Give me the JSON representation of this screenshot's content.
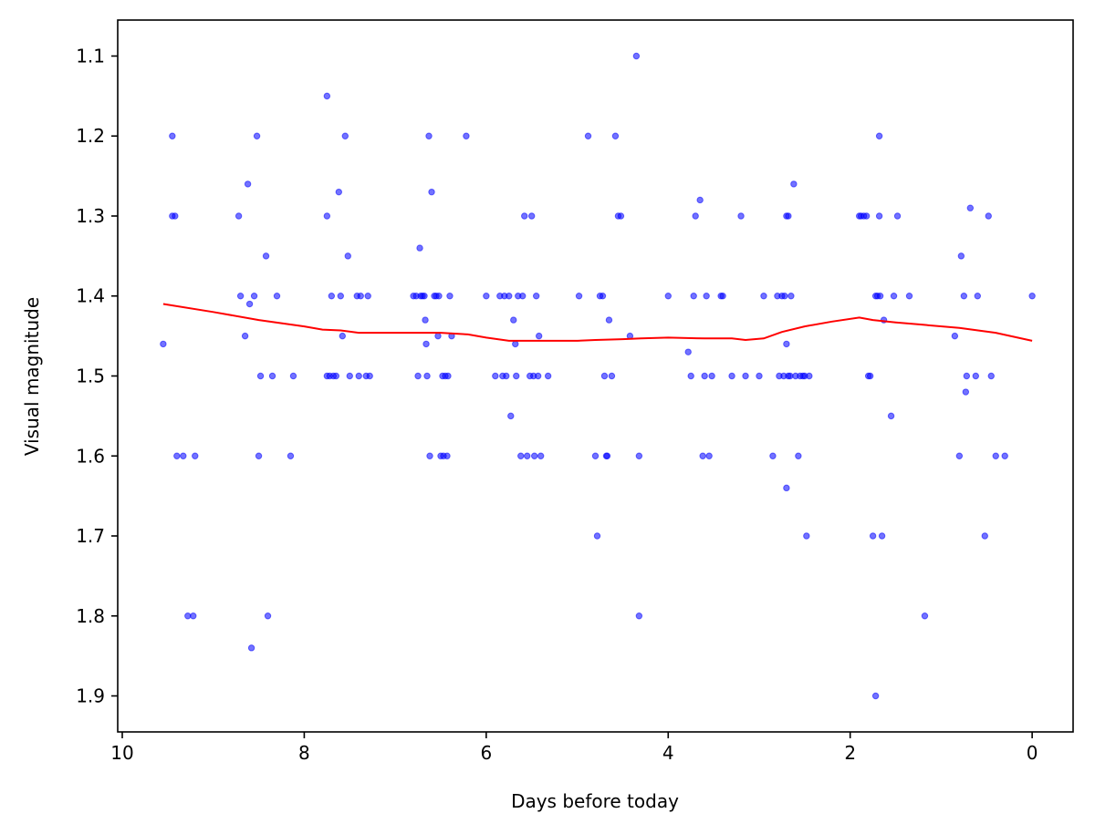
{
  "chart_data": {
    "type": "scatter",
    "title": "",
    "xlabel": "Days before today",
    "ylabel": "Visual magnitude",
    "x_inverted": true,
    "y_inverted": true,
    "xlim": [
      10.05,
      -0.45
    ],
    "ylim": [
      1.055,
      1.945
    ],
    "grid": false,
    "x_ticks": [
      10,
      8,
      6,
      4,
      2,
      0
    ],
    "x_tick_labels": [
      "10",
      "8",
      "6",
      "4",
      "2",
      "0"
    ],
    "y_ticks": [
      1.1,
      1.2,
      1.3,
      1.4,
      1.5,
      1.6,
      1.7,
      1.8,
      1.9
    ],
    "y_tick_labels": [
      "1.1",
      "1.2",
      "1.3",
      "1.4",
      "1.5",
      "1.6",
      "1.7",
      "1.8",
      "1.9"
    ],
    "series": [
      {
        "kind": "scatter",
        "color": "#0000ff",
        "opacity": 0.55,
        "points": [
          [
            9.55,
            1.46
          ],
          [
            9.45,
            1.2
          ],
          [
            9.45,
            1.3
          ],
          [
            9.42,
            1.3
          ],
          [
            9.4,
            1.6
          ],
          [
            9.33,
            1.6
          ],
          [
            9.28,
            1.8
          ],
          [
            9.22,
            1.8
          ],
          [
            9.2,
            1.6
          ],
          [
            8.72,
            1.3
          ],
          [
            8.7,
            1.4
          ],
          [
            8.65,
            1.45
          ],
          [
            8.62,
            1.26
          ],
          [
            8.6,
            1.41
          ],
          [
            8.58,
            1.84
          ],
          [
            8.55,
            1.4
          ],
          [
            8.52,
            1.2
          ],
          [
            8.5,
            1.6
          ],
          [
            8.48,
            1.5
          ],
          [
            8.42,
            1.35
          ],
          [
            8.4,
            1.8
          ],
          [
            8.35,
            1.5
          ],
          [
            8.3,
            1.4
          ],
          [
            8.15,
            1.6
          ],
          [
            8.12,
            1.5
          ],
          [
            7.75,
            1.15
          ],
          [
            7.75,
            1.3
          ],
          [
            7.75,
            1.5
          ],
          [
            7.72,
            1.5
          ],
          [
            7.7,
            1.4
          ],
          [
            7.68,
            1.5
          ],
          [
            7.65,
            1.5
          ],
          [
            7.62,
            1.27
          ],
          [
            7.6,
            1.4
          ],
          [
            7.58,
            1.45
          ],
          [
            7.55,
            1.2
          ],
          [
            7.52,
            1.35
          ],
          [
            7.5,
            1.5
          ],
          [
            7.42,
            1.4
          ],
          [
            7.4,
            1.5
          ],
          [
            7.38,
            1.4
          ],
          [
            7.32,
            1.5
          ],
          [
            7.3,
            1.4
          ],
          [
            7.28,
            1.5
          ],
          [
            6.8,
            1.4
          ],
          [
            6.77,
            1.4
          ],
          [
            6.75,
            1.5
          ],
          [
            6.73,
            1.34
          ],
          [
            6.72,
            1.4
          ],
          [
            6.7,
            1.4
          ],
          [
            6.68,
            1.4
          ],
          [
            6.67,
            1.43
          ],
          [
            6.66,
            1.46
          ],
          [
            6.65,
            1.5
          ],
          [
            6.63,
            1.2
          ],
          [
            6.62,
            1.6
          ],
          [
            6.6,
            1.27
          ],
          [
            6.57,
            1.4
          ],
          [
            6.55,
            1.4
          ],
          [
            6.53,
            1.45
          ],
          [
            6.52,
            1.4
          ],
          [
            6.5,
            1.6
          ],
          [
            6.48,
            1.5
          ],
          [
            6.47,
            1.6
          ],
          [
            6.45,
            1.5
          ],
          [
            6.43,
            1.6
          ],
          [
            6.42,
            1.5
          ],
          [
            6.4,
            1.4
          ],
          [
            6.38,
            1.45
          ],
          [
            6.22,
            1.2
          ],
          [
            6.0,
            1.4
          ],
          [
            5.9,
            1.5
          ],
          [
            5.85,
            1.4
          ],
          [
            5.82,
            1.5
          ],
          [
            5.8,
            1.4
          ],
          [
            5.78,
            1.5
          ],
          [
            5.75,
            1.4
          ],
          [
            5.73,
            1.55
          ],
          [
            5.7,
            1.43
          ],
          [
            5.68,
            1.46
          ],
          [
            5.67,
            1.5
          ],
          [
            5.65,
            1.4
          ],
          [
            5.62,
            1.6
          ],
          [
            5.6,
            1.4
          ],
          [
            5.58,
            1.3
          ],
          [
            5.55,
            1.6
          ],
          [
            5.52,
            1.5
          ],
          [
            5.5,
            1.3
          ],
          [
            5.48,
            1.5
          ],
          [
            5.47,
            1.6
          ],
          [
            5.45,
            1.4
          ],
          [
            5.43,
            1.5
          ],
          [
            5.42,
            1.45
          ],
          [
            5.4,
            1.6
          ],
          [
            5.32,
            1.5
          ],
          [
            4.98,
            1.4
          ],
          [
            4.88,
            1.2
          ],
          [
            4.8,
            1.6
          ],
          [
            4.78,
            1.7
          ],
          [
            4.75,
            1.4
          ],
          [
            4.72,
            1.4
          ],
          [
            4.7,
            1.5
          ],
          [
            4.68,
            1.6
          ],
          [
            4.67,
            1.6
          ],
          [
            4.65,
            1.43
          ],
          [
            4.62,
            1.5
          ],
          [
            4.58,
            1.2
          ],
          [
            4.55,
            1.3
          ],
          [
            4.52,
            1.3
          ],
          [
            4.42,
            1.45
          ],
          [
            4.35,
            1.1
          ],
          [
            4.32,
            1.6
          ],
          [
            4.32,
            1.8
          ],
          [
            4.0,
            1.4
          ],
          [
            3.78,
            1.47
          ],
          [
            3.75,
            1.5
          ],
          [
            3.72,
            1.4
          ],
          [
            3.7,
            1.3
          ],
          [
            3.65,
            1.28
          ],
          [
            3.62,
            1.6
          ],
          [
            3.6,
            1.5
          ],
          [
            3.58,
            1.4
          ],
          [
            3.55,
            1.6
          ],
          [
            3.52,
            1.5
          ],
          [
            3.42,
            1.4
          ],
          [
            3.4,
            1.4
          ],
          [
            3.3,
            1.5
          ],
          [
            3.2,
            1.3
          ],
          [
            3.15,
            1.5
          ],
          [
            3.0,
            1.5
          ],
          [
            2.95,
            1.4
          ],
          [
            2.85,
            1.6
          ],
          [
            2.8,
            1.4
          ],
          [
            2.78,
            1.5
          ],
          [
            2.75,
            1.4
          ],
          [
            2.73,
            1.5
          ],
          [
            2.72,
            1.4
          ],
          [
            2.7,
            1.3
          ],
          [
            2.7,
            1.64
          ],
          [
            2.7,
            1.46
          ],
          [
            2.68,
            1.5
          ],
          [
            2.68,
            1.3
          ],
          [
            2.66,
            1.5
          ],
          [
            2.65,
            1.4
          ],
          [
            2.62,
            1.26
          ],
          [
            2.6,
            1.5
          ],
          [
            2.57,
            1.6
          ],
          [
            2.55,
            1.5
          ],
          [
            2.52,
            1.5
          ],
          [
            2.5,
            1.5
          ],
          [
            2.48,
            1.7
          ],
          [
            2.45,
            1.5
          ],
          [
            1.9,
            1.3
          ],
          [
            1.88,
            1.3
          ],
          [
            1.85,
            1.3
          ],
          [
            1.82,
            1.3
          ],
          [
            1.8,
            1.5
          ],
          [
            1.78,
            1.5
          ],
          [
            1.75,
            1.7
          ],
          [
            1.72,
            1.9
          ],
          [
            1.72,
            1.4
          ],
          [
            1.7,
            1.4
          ],
          [
            1.68,
            1.2
          ],
          [
            1.68,
            1.3
          ],
          [
            1.67,
            1.4
          ],
          [
            1.65,
            1.7
          ],
          [
            1.63,
            1.43
          ],
          [
            1.55,
            1.55
          ],
          [
            1.52,
            1.4
          ],
          [
            1.48,
            1.3
          ],
          [
            1.35,
            1.4
          ],
          [
            1.18,
            1.8
          ],
          [
            0.85,
            1.45
          ],
          [
            0.8,
            1.6
          ],
          [
            0.78,
            1.35
          ],
          [
            0.75,
            1.4
          ],
          [
            0.73,
            1.52
          ],
          [
            0.72,
            1.5
          ],
          [
            0.68,
            1.29
          ],
          [
            0.62,
            1.5
          ],
          [
            0.6,
            1.4
          ],
          [
            0.52,
            1.7
          ],
          [
            0.48,
            1.3
          ],
          [
            0.45,
            1.5
          ],
          [
            0.4,
            1.6
          ],
          [
            0.3,
            1.6
          ],
          [
            0.0,
            1.4
          ]
        ]
      },
      {
        "kind": "line",
        "color": "#ff0000",
        "points": [
          [
            9.55,
            1.41
          ],
          [
            9.0,
            1.42
          ],
          [
            8.5,
            1.43
          ],
          [
            8.0,
            1.438
          ],
          [
            7.8,
            1.442
          ],
          [
            7.6,
            1.443
          ],
          [
            7.4,
            1.446
          ],
          [
            7.0,
            1.446
          ],
          [
            6.5,
            1.446
          ],
          [
            6.2,
            1.448
          ],
          [
            6.0,
            1.452
          ],
          [
            5.75,
            1.456
          ],
          [
            5.5,
            1.456
          ],
          [
            5.0,
            1.456
          ],
          [
            4.8,
            1.455
          ],
          [
            4.5,
            1.454
          ],
          [
            4.3,
            1.453
          ],
          [
            4.0,
            1.452
          ],
          [
            3.6,
            1.453
          ],
          [
            3.3,
            1.453
          ],
          [
            3.15,
            1.455
          ],
          [
            2.95,
            1.453
          ],
          [
            2.75,
            1.445
          ],
          [
            2.5,
            1.438
          ],
          [
            2.2,
            1.432
          ],
          [
            1.9,
            1.427
          ],
          [
            1.75,
            1.43
          ],
          [
            1.5,
            1.433
          ],
          [
            1.2,
            1.436
          ],
          [
            0.8,
            1.44
          ],
          [
            0.4,
            1.446
          ],
          [
            0.0,
            1.456
          ]
        ]
      }
    ]
  }
}
